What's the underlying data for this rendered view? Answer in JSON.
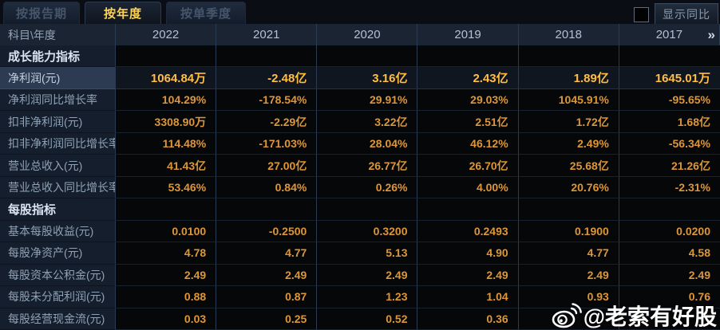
{
  "tabs": [
    {
      "label": "按报告期",
      "active": false
    },
    {
      "label": "按年度",
      "active": true
    },
    {
      "label": "按单季度",
      "active": false
    }
  ],
  "controls": {
    "show_yoy_label": "显示同比",
    "checkbox_checked": false
  },
  "table": {
    "corner_header": "科目\\年度",
    "years": [
      "2022",
      "2021",
      "2020",
      "2019",
      "2018",
      "2017"
    ],
    "more_columns_glyph": "»",
    "rows": [
      {
        "type": "section",
        "label": "成长能力指标",
        "values": [
          "",
          "",
          "",
          "",
          "",
          ""
        ]
      },
      {
        "type": "data",
        "highlight": true,
        "label": "净利润(元)",
        "values": [
          "1064.84万",
          "-2.48亿",
          "3.16亿",
          "2.43亿",
          "1.89亿",
          "1645.01万"
        ]
      },
      {
        "type": "data",
        "label": "净利润同比增长率",
        "values": [
          "104.29%",
          "-178.54%",
          "29.91%",
          "29.03%",
          "1045.91%",
          "-95.65%"
        ]
      },
      {
        "type": "data",
        "label": "扣非净利润(元)",
        "values": [
          "3308.90万",
          "-2.29亿",
          "3.22亿",
          "2.51亿",
          "1.72亿",
          "1.68亿"
        ]
      },
      {
        "type": "data",
        "label": "扣非净利润同比增长率",
        "values": [
          "114.48%",
          "-171.03%",
          "28.04%",
          "46.12%",
          "2.49%",
          "-56.34%"
        ]
      },
      {
        "type": "data",
        "label": "营业总收入(元)",
        "values": [
          "41.43亿",
          "27.00亿",
          "26.77亿",
          "26.70亿",
          "25.68亿",
          "21.26亿"
        ]
      },
      {
        "type": "data",
        "label": "营业总收入同比增长率",
        "values": [
          "53.46%",
          "0.84%",
          "0.26%",
          "4.00%",
          "20.76%",
          "-2.31%"
        ]
      },
      {
        "type": "section",
        "label": "每股指标",
        "values": [
          "",
          "",
          "",
          "",
          "",
          ""
        ]
      },
      {
        "type": "data",
        "label": "基本每股收益(元)",
        "values": [
          "0.0100",
          "-0.2500",
          "0.3200",
          "0.2493",
          "0.1900",
          "0.0200"
        ]
      },
      {
        "type": "data",
        "label": "每股净资产(元)",
        "values": [
          "4.78",
          "4.77",
          "5.13",
          "4.90",
          "4.77",
          "4.58"
        ]
      },
      {
        "type": "data",
        "label": "每股资本公积金(元)",
        "values": [
          "2.49",
          "2.49",
          "2.49",
          "2.49",
          "2.49",
          "2.49"
        ]
      },
      {
        "type": "data",
        "label": "每股未分配利润(元)",
        "values": [
          "0.88",
          "0.87",
          "1.23",
          "1.04",
          "0.93",
          "0.76"
        ]
      },
      {
        "type": "data",
        "label": "每股经营现金流(元)",
        "values": [
          "0.03",
          "0.25",
          "0.52",
          "0.36",
          "",
          ""
        ]
      }
    ]
  },
  "watermark": {
    "handle": "@老索有好股",
    "icon": "weibo-icon"
  },
  "colors": {
    "active_tab_text": "#ffd34d",
    "value_text": "#dd9638",
    "highlight_value_text": "#ffbe45",
    "header_bg": "#1b2433",
    "label_col_bg": "#151e2c",
    "highlight_label_bg": "#2c3a52",
    "watermark_text": "#ffffff"
  }
}
